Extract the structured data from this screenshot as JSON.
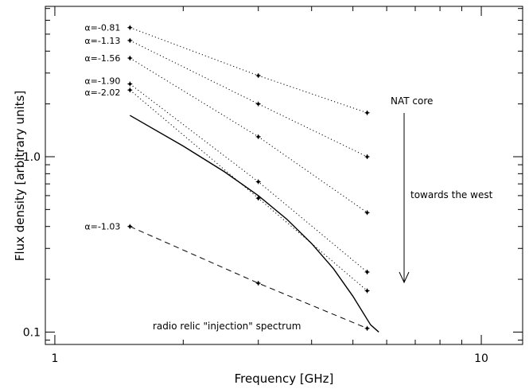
{
  "chart_data": {
    "type": "line",
    "xlabel": "Frequency [GHz]",
    "ylabel": "Flux density [arbitrary units]",
    "xscale": "log",
    "yscale": "log",
    "xlim": [
      0.95,
      12.5
    ],
    "ylim": [
      0.085,
      7.2
    ],
    "x_ticks": [
      {
        "value": 1,
        "label": "1"
      },
      {
        "value": 10,
        "label": "10"
      }
    ],
    "y_ticks": [
      {
        "value": 0.1,
        "label": "0.1"
      },
      {
        "value": 1.0,
        "label": "1.0"
      }
    ],
    "grid": false,
    "series": [
      {
        "name": "α=-0.81",
        "style": "dotted",
        "x": [
          1.5,
          3.0,
          5.4
        ],
        "values": [
          5.45,
          2.9,
          1.78
        ]
      },
      {
        "name": "α=-1.13",
        "style": "dotted",
        "x": [
          1.5,
          3.0,
          5.4
        ],
        "values": [
          4.6,
          2.0,
          1.0
        ]
      },
      {
        "name": "α=-1.56",
        "style": "dotted",
        "x": [
          1.5,
          3.0,
          5.4
        ],
        "values": [
          3.65,
          1.3,
          0.48
        ]
      },
      {
        "name": "α=-1.90",
        "style": "dotted",
        "x": [
          1.5,
          3.0,
          5.4
        ],
        "values": [
          2.6,
          0.72,
          0.22
        ]
      },
      {
        "name": "α=-2.02",
        "style": "dotted",
        "x": [
          1.5,
          3.0,
          5.4
        ],
        "values": [
          2.4,
          0.58,
          0.172
        ]
      },
      {
        "name": "α=-1.03",
        "style": "dashed",
        "x": [
          1.5,
          3.0,
          5.4
        ],
        "values": [
          0.4,
          0.19,
          0.105
        ]
      },
      {
        "name": "",
        "style": "solid",
        "x": [
          1.5,
          2.0,
          2.5,
          3.0,
          3.5,
          4.0,
          4.5,
          5.0,
          5.5,
          5.75
        ],
        "values": [
          1.72,
          1.15,
          0.82,
          0.6,
          0.44,
          0.32,
          0.23,
          0.16,
          0.11,
          0.1
        ]
      }
    ],
    "annotations": [
      {
        "text": "NAT core"
      },
      {
        "text": "towards the west"
      },
      {
        "text": "radio relic \"injection\" spectrum"
      }
    ]
  }
}
